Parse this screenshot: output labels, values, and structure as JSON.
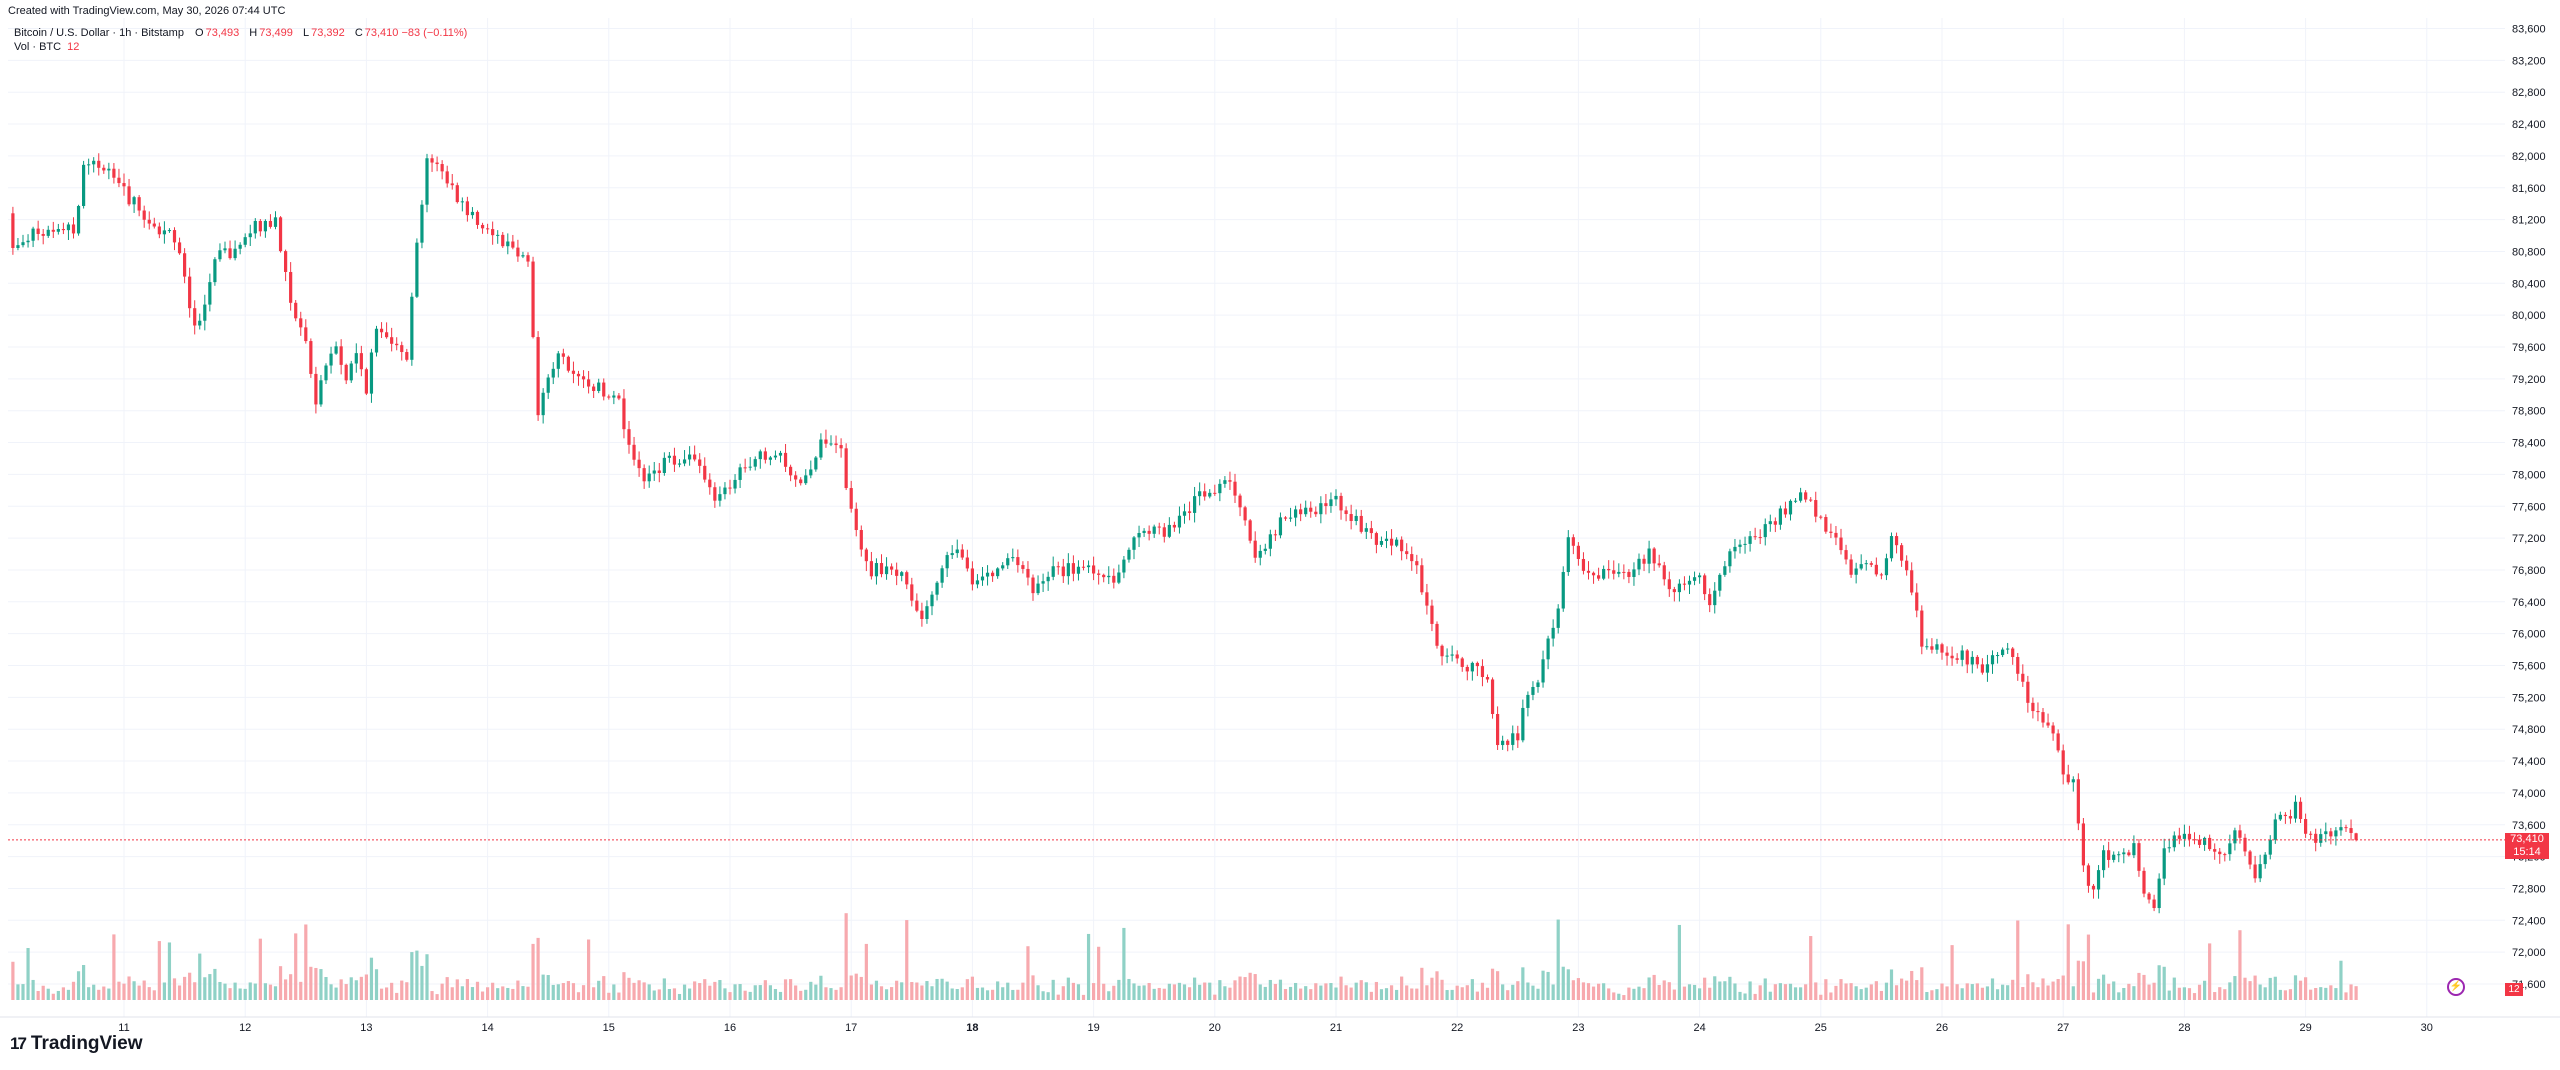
{
  "header": {
    "created": "Created with TradingView.com, May 30, 2026 07:44 UTC",
    "symbol": "Bitcoin / U.S. Dollar · 1h · Bitstamp",
    "o_label": "O",
    "o_value": "73,493",
    "h_label": "H",
    "h_value": "73,499",
    "l_label": "L",
    "l_value": "73,392",
    "c_label": "C",
    "c_value": "73,410 −83 (−0.11%)",
    "vol_label": "Vol · BTC",
    "vol_value": "12"
  },
  "price_tag": {
    "price": "73,410",
    "countdown": "15:14"
  },
  "volume_tag": "12",
  "brand": {
    "mark": "17",
    "name": "TradingView"
  },
  "colors": {
    "up": "#089981",
    "down": "#f23645",
    "up_vol": "#8fd1c6",
    "down_vol": "#f7a9ae",
    "grid": "#f0f3fa",
    "axis_text": "#131722"
  },
  "chart_data": {
    "type": "candlestick",
    "interval": "1h",
    "ylim": [
      71400,
      83700
    ],
    "y_ticks": [
      71600,
      72000,
      72400,
      72800,
      73200,
      73600,
      74000,
      74400,
      74800,
      75200,
      75600,
      76000,
      76400,
      76800,
      77200,
      77600,
      78000,
      78400,
      78800,
      79200,
      79600,
      80000,
      80400,
      80800,
      81200,
      81600,
      82000,
      82400,
      82800,
      83200,
      83600
    ],
    "y_tick_labels": [
      "71,600",
      "72,000",
      "72,400",
      "72,800",
      "73,200",
      "73,600",
      "74,000",
      "74,400",
      "74,800",
      "75,200",
      "75,600",
      "76,000",
      "76,400",
      "76,800",
      "77,200",
      "77,600",
      "78,000",
      "78,400",
      "78,800",
      "79,200",
      "79,600",
      "80,000",
      "80,400",
      "80,800",
      "81,200",
      "81,600",
      "82,000",
      "82,400",
      "82,800",
      "83,200",
      "83,600"
    ],
    "x_tick_labels": [
      "11",
      "12",
      "13",
      "14",
      "15",
      "16",
      "17",
      "18",
      "19",
      "20",
      "21",
      "22",
      "23",
      "24",
      "25",
      "26",
      "27",
      "28",
      "29",
      "30"
    ],
    "x_tick_bold": [
      "18"
    ],
    "anchors": [
      [
        0,
        80850
      ],
      [
        12,
        81050
      ],
      [
        18,
        81300
      ],
      [
        20,
        81250
      ],
      [
        22,
        80800
      ],
      [
        24,
        82200
      ],
      [
        26,
        81600
      ],
      [
        28,
        80900
      ],
      [
        32,
        81000
      ],
      [
        36,
        81000
      ],
      [
        40,
        81100
      ],
      [
        42,
        81800
      ],
      [
        44,
        82000
      ],
      [
        48,
        81700
      ],
      [
        52,
        81400
      ],
      [
        56,
        81100
      ],
      [
        60,
        81000
      ],
      [
        64,
        79900
      ],
      [
        66,
        80100
      ],
      [
        68,
        80700
      ],
      [
        72,
        80800
      ],
      [
        76,
        81100
      ],
      [
        80,
        81200
      ],
      [
        84,
        79900
      ],
      [
        86,
        79700
      ],
      [
        88,
        78900
      ],
      [
        90,
        79400
      ],
      [
        92,
        79600
      ],
      [
        94,
        79200
      ],
      [
        96,
        79500
      ],
      [
        98,
        79100
      ],
      [
        100,
        79800
      ],
      [
        104,
        79700
      ],
      [
        106,
        79500
      ],
      [
        108,
        80900
      ],
      [
        110,
        82000
      ],
      [
        114,
        81700
      ],
      [
        116,
        81500
      ],
      [
        118,
        81300
      ],
      [
        122,
        81100
      ],
      [
        126,
        80900
      ],
      [
        130,
        80700
      ],
      [
        132,
        78800
      ],
      [
        134,
        79200
      ],
      [
        136,
        79500
      ],
      [
        140,
        79150
      ],
      [
        144,
        79100
      ],
      [
        148,
        78900
      ],
      [
        150,
        78400
      ],
      [
        152,
        78000
      ],
      [
        154,
        77950
      ],
      [
        158,
        78200
      ],
      [
        162,
        78250
      ],
      [
        166,
        77800
      ],
      [
        168,
        77700
      ],
      [
        172,
        78000
      ],
      [
        176,
        78200
      ],
      [
        180,
        78200
      ],
      [
        184,
        77900
      ],
      [
        188,
        78350
      ],
      [
        192,
        78300
      ],
      [
        194,
        77500
      ],
      [
        196,
        77000
      ],
      [
        198,
        76800
      ],
      [
        204,
        76800
      ],
      [
        208,
        76200
      ],
      [
        210,
        76400
      ],
      [
        212,
        76900
      ],
      [
        214,
        77100
      ],
      [
        218,
        76700
      ],
      [
        222,
        76800
      ],
      [
        226,
        77000
      ],
      [
        230,
        76500
      ],
      [
        234,
        76800
      ],
      [
        238,
        76800
      ],
      [
        242,
        76800
      ],
      [
        246,
        76700
      ],
      [
        250,
        77200
      ],
      [
        254,
        77300
      ],
      [
        258,
        77300
      ],
      [
        262,
        77700
      ],
      [
        266,
        77800
      ],
      [
        268,
        77900
      ],
      [
        270,
        77800
      ],
      [
        274,
        77000
      ],
      [
        278,
        77300
      ],
      [
        282,
        77600
      ],
      [
        286,
        77500
      ],
      [
        290,
        77700
      ],
      [
        294,
        77400
      ],
      [
        298,
        77100
      ],
      [
        302,
        77200
      ],
      [
        306,
        76800
      ],
      [
        308,
        76300
      ],
      [
        310,
        75900
      ],
      [
        312,
        75700
      ],
      [
        316,
        75600
      ],
      [
        320,
        75500
      ],
      [
        322,
        74600
      ],
      [
        326,
        74700
      ],
      [
        328,
        75300
      ],
      [
        330,
        75400
      ],
      [
        334,
        76300
      ],
      [
        336,
        77200
      ],
      [
        338,
        77000
      ],
      [
        340,
        76700
      ],
      [
        344,
        76800
      ],
      [
        348,
        76800
      ],
      [
        352,
        77000
      ],
      [
        354,
        76900
      ],
      [
        356,
        76500
      ],
      [
        358,
        76600
      ],
      [
        362,
        76700
      ],
      [
        364,
        76300
      ],
      [
        366,
        76800
      ],
      [
        368,
        77000
      ],
      [
        372,
        77200
      ],
      [
        376,
        77400
      ],
      [
        378,
        77500
      ],
      [
        382,
        77700
      ],
      [
        384,
        77600
      ],
      [
        386,
        77400
      ],
      [
        390,
        77100
      ],
      [
        392,
        76700
      ],
      [
        396,
        76900
      ],
      [
        398,
        76700
      ],
      [
        400,
        77200
      ],
      [
        402,
        77000
      ],
      [
        404,
        76500
      ],
      [
        406,
        75900
      ],
      [
        410,
        75800
      ],
      [
        414,
        75700
      ],
      [
        418,
        75600
      ],
      [
        420,
        75800
      ],
      [
        424,
        75700
      ],
      [
        426,
        75400
      ],
      [
        428,
        75000
      ],
      [
        432,
        74800
      ],
      [
        434,
        74300
      ],
      [
        436,
        74100
      ],
      [
        438,
        73000
      ],
      [
        440,
        72800
      ],
      [
        442,
        73200
      ],
      [
        446,
        73300
      ],
      [
        448,
        73300
      ],
      [
        450,
        72800
      ],
      [
        452,
        72600
      ],
      [
        454,
        73300
      ],
      [
        458,
        73500
      ],
      [
        462,
        73400
      ],
      [
        466,
        73200
      ],
      [
        468,
        73500
      ],
      [
        472,
        73000
      ],
      [
        476,
        73600
      ],
      [
        480,
        73800
      ],
      [
        482,
        73400
      ],
      [
        486,
        73500
      ],
      [
        490,
        73493
      ],
      [
        492,
        73410
      ]
    ],
    "n_candles": 493,
    "last": {
      "open": 73493,
      "high": 73499,
      "low": 73392,
      "close": 73410
    },
    "volume_ylim": [
      0,
      250
    ]
  }
}
